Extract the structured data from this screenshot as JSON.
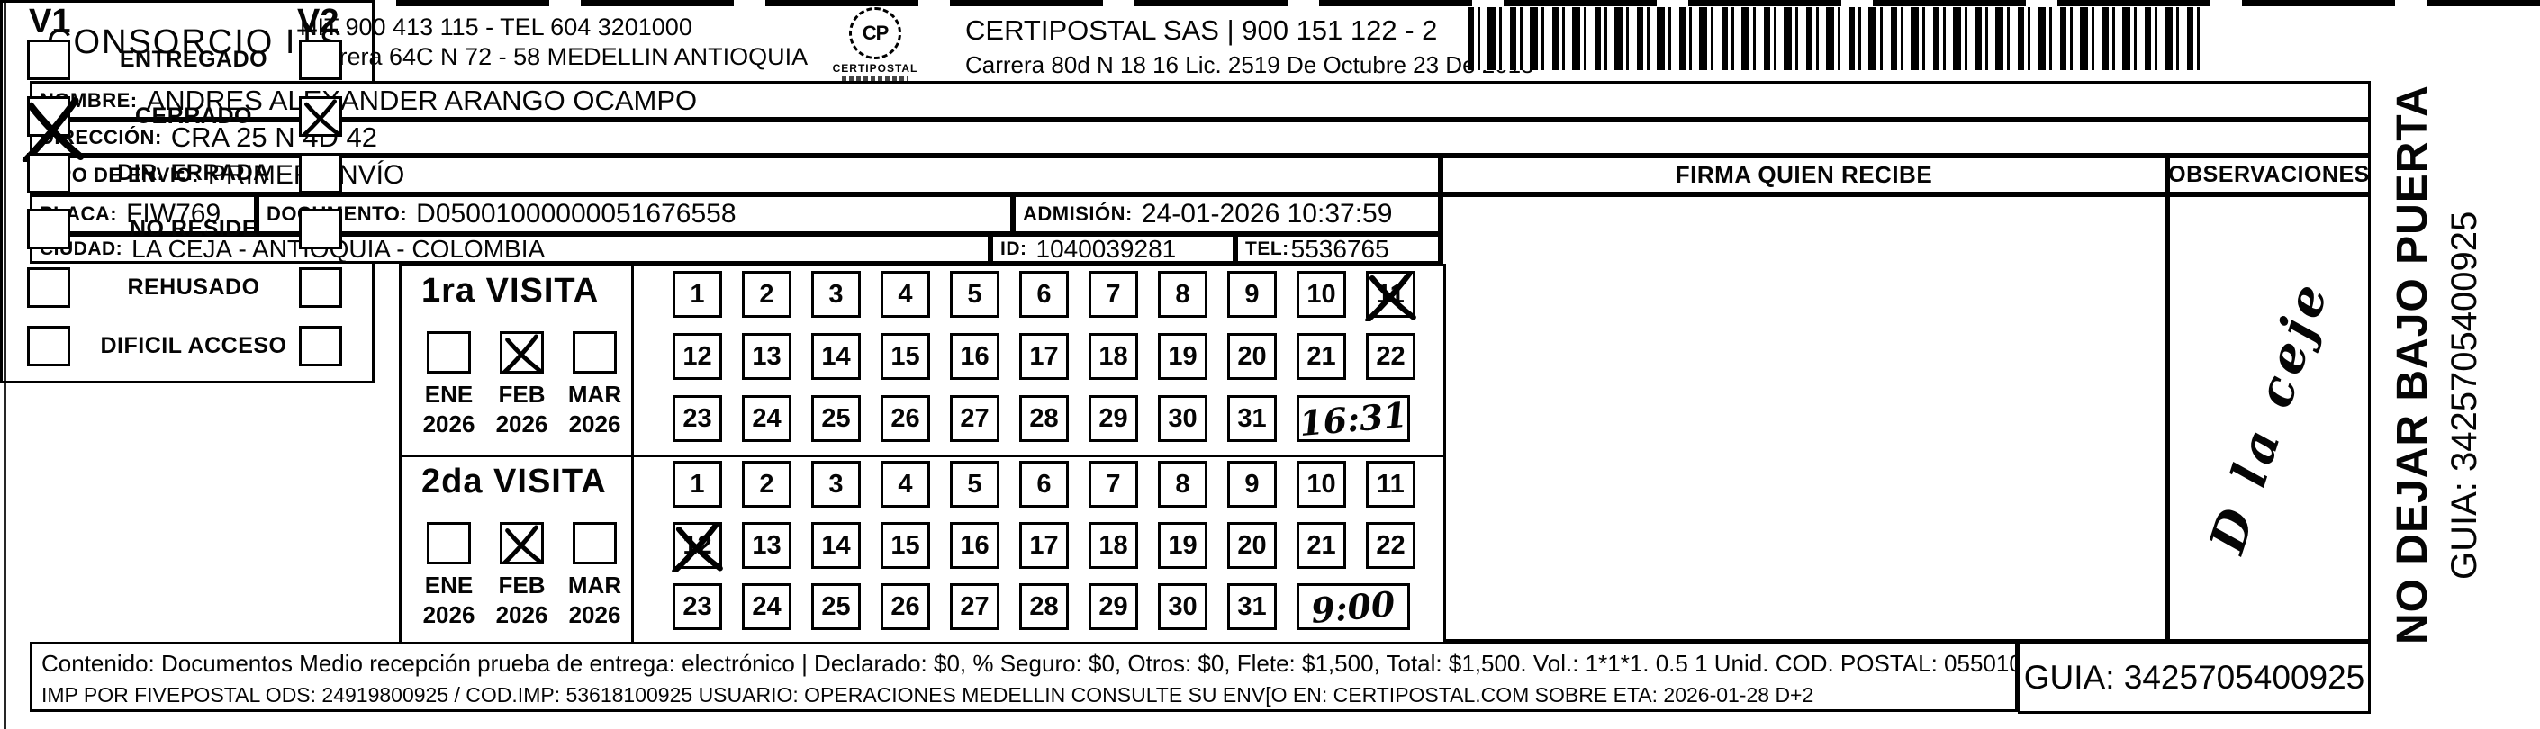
{
  "header": {
    "company": "CONSORCIO ITS",
    "nit_tel": "NIT 900 413 115 - TEL 604 3201000",
    "address": "Carrera 64C N 72 - 58 MEDELLIN ANTIOQUIA",
    "logo_caption": "CERTIPOSTAL",
    "logo_monogram": "CP",
    "partner": "CERTIPOSTAL SAS | 900 151 122 - 2",
    "partner_address": "Carrera 80d N 18 16  Lic. 2519 De Octubre 23 De 2015"
  },
  "shipment": {
    "nombre_label": "NOMBRE:",
    "nombre": "ANDRES ALEXANDER ARANGO OCAMPO",
    "direccion_label": "DIRECCIÓN:",
    "direccion": "CRA 25 N 4D 42",
    "tipo_label": "TIPO DE ENVIO:",
    "tipo": "PRIMER ENVÍO",
    "placa_label": "PLACA:",
    "placa": "FIW769",
    "documento_label": "DOCUMENTO:",
    "documento": "D05001000000051676558",
    "admision_label": "ADMISIÓN:",
    "admision": "24-01-2026 10:37:59",
    "ciudad_label": "CIUDAD:",
    "ciudad": "LA CEJA - ANTIOQUIA - COLOMBIA",
    "id_label": "ID:",
    "id": "1040039281",
    "tel_label": "TEL:",
    "tel": "5536765"
  },
  "columns": {
    "firma": "FIRMA QUIEN RECIBE",
    "observaciones": "OBSERVACIONES"
  },
  "status_panel": {
    "v1": "V1",
    "v2": "V2",
    "rows": [
      {
        "label": "ENTREGADO",
        "v1_checked": false,
        "v2_checked": false
      },
      {
        "label": "CERRADO",
        "v1_checked": true,
        "v2_checked": true
      },
      {
        "label": "DIR. ERRADA",
        "v1_checked": false,
        "v2_checked": false
      },
      {
        "label": "NO RESIDE",
        "v1_checked": false,
        "v2_checked": false
      },
      {
        "label": "REHUSADO",
        "v1_checked": false,
        "v2_checked": false
      },
      {
        "label": "DIFICIL ACCESO",
        "v1_checked": false,
        "v2_checked": false
      }
    ]
  },
  "visits": [
    {
      "title": "1ra VISITA",
      "months": [
        {
          "label": "ENE",
          "year": "2026",
          "checked": false
        },
        {
          "label": "FEB",
          "year": "2026",
          "checked": true
        },
        {
          "label": "MAR",
          "year": "2026",
          "checked": false
        }
      ],
      "day_rows": [
        [
          1,
          2,
          3,
          4,
          5,
          6,
          7,
          8,
          9,
          10,
          11
        ],
        [
          12,
          13,
          14,
          15,
          16,
          17,
          18,
          19,
          20,
          21,
          22
        ],
        [
          23,
          24,
          25,
          26,
          27,
          28,
          29,
          30,
          31
        ]
      ],
      "crossed_days": [
        11
      ],
      "time_note": "16:31"
    },
    {
      "title": "2da VISITA",
      "months": [
        {
          "label": "ENE",
          "year": "2026",
          "checked": false
        },
        {
          "label": "FEB",
          "year": "2026",
          "checked": true
        },
        {
          "label": "MAR",
          "year": "2026",
          "checked": false
        }
      ],
      "day_rows": [
        [
          1,
          2,
          3,
          4,
          5,
          6,
          7,
          8,
          9,
          10,
          11
        ],
        [
          12,
          13,
          14,
          15,
          16,
          17,
          18,
          19,
          20,
          21,
          22
        ],
        [
          23,
          24,
          25,
          26,
          27,
          28,
          29,
          30,
          31
        ]
      ],
      "crossed_days": [
        12
      ],
      "time_note": "9:00"
    }
  ],
  "observations_note": "D la ceje",
  "side_banner": {
    "line1": "NO DEJAR BAJO PUERTA",
    "line2": "GUIA: 3425705400925"
  },
  "footer": {
    "line1": "Contenido: Documentos Medio recepción prueba de entrega: electrónico | Declarado: $0, % Seguro: $0, Otros: $0, Flete: $1,500, Total: $1,500. Vol.: 1*1*1. 0.5  1 Unid. COD. POSTAL: 055010",
    "line2": "IMP POR FIVEPOSTAL ODS: 24919800925 / COD.IMP: 53618100925 USUARIO: OPERACIONES MEDELLIN CONSULTE SU ENV[O EN: CERTIPOSTAL.COM SOBRE ETA: 2026-01-28 D+2",
    "guia": "GUIA: 3425705400925"
  }
}
